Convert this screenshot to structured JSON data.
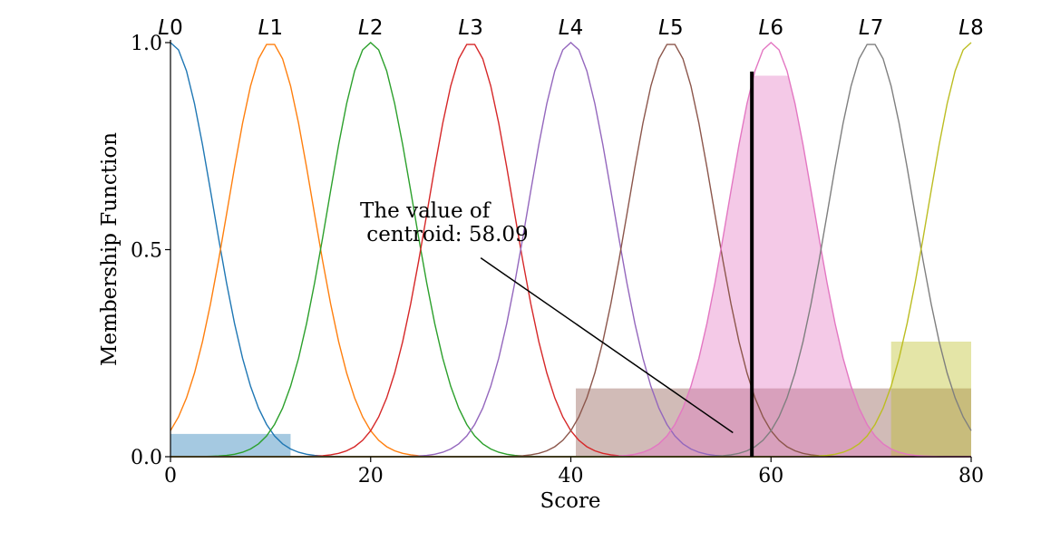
{
  "chart_data": {
    "type": "line",
    "xlabel": "Score",
    "ylabel": "Membership Function",
    "xlim": [
      0,
      80
    ],
    "ylim": [
      0,
      1
    ],
    "xticks": [
      0,
      20,
      40,
      60,
      80
    ],
    "yticks": [
      0.0,
      0.5,
      1.0
    ],
    "xtick_labels": [
      "0",
      "20",
      "40",
      "60",
      "80"
    ],
    "ytick_labels": [
      "0.0",
      "0.5",
      "1.0"
    ],
    "gaussian_sigma": 4.25,
    "series": [
      {
        "name": "L0",
        "label": "L",
        "sub": "0",
        "center": 0,
        "color": "#1f77b4"
      },
      {
        "name": "L1",
        "label": "L",
        "sub": "1",
        "center": 10,
        "color": "#ff7f0e"
      },
      {
        "name": "L2",
        "label": "L",
        "sub": "2",
        "center": 20,
        "color": "#2ca02c"
      },
      {
        "name": "L3",
        "label": "L",
        "sub": "3",
        "center": 30,
        "color": "#d62728"
      },
      {
        "name": "L4",
        "label": "L",
        "sub": "4",
        "center": 40,
        "color": "#9467bd"
      },
      {
        "name": "L5",
        "label": "L",
        "sub": "5",
        "center": 50,
        "color": "#8c564b"
      },
      {
        "name": "L6",
        "label": "L",
        "sub": "6",
        "center": 60,
        "color": "#e377c2"
      },
      {
        "name": "L7",
        "label": "L",
        "sub": "7",
        "center": 70,
        "color": "#7f7f7f"
      },
      {
        "name": "L8",
        "label": "L",
        "sub": "8",
        "center": 80,
        "color": "#bcbd22"
      }
    ],
    "filled_regions": [
      {
        "series": "L0",
        "type": "clipped",
        "x": [
          0,
          12
        ],
        "height": 0.055,
        "color": "#1f77b4",
        "opacity": 0.4
      },
      {
        "series": "L5",
        "type": "clipped",
        "x": [
          40.5,
          80
        ],
        "height": 0.165,
        "color": "#8c564b",
        "opacity": 0.4
      },
      {
        "series": "L6",
        "type": "clipped_gaussian",
        "x": [
          40,
          80
        ],
        "height": 0.92,
        "color": "#e377c2",
        "opacity": 0.4
      },
      {
        "series": "L8",
        "type": "clipped",
        "x": [
          72,
          80
        ],
        "height": 0.278,
        "color": "#bcbd22",
        "opacity": 0.4
      }
    ],
    "centroid": {
      "x": 58.09,
      "y_top": 0.93
    },
    "annotation": {
      "text_line1": "The value of",
      "text_line2": " centroid: 58.09",
      "arrow_start": [
        31,
        0.48
      ],
      "arrow_end": [
        56.2,
        0.058
      ]
    }
  }
}
